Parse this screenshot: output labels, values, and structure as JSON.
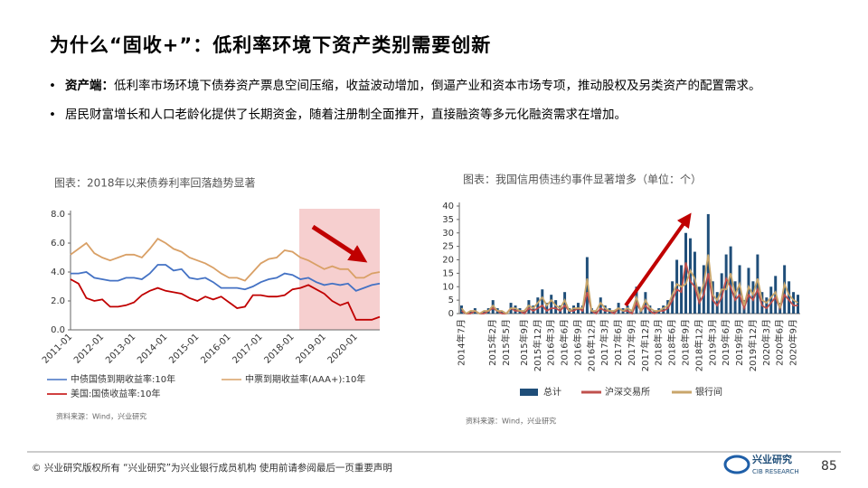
{
  "slide": {
    "title": "为什么“固收+”：低利率环境下资产类别需要创新",
    "bullets": [
      {
        "bold": "资产端：",
        "text": "低利率市场环境下债券资产票息空间压缩，收益波动增加，倒逼产业和资本市场专项，推动股权及另类资产的配置需求。"
      },
      {
        "text": "居民财富增长和人口老龄化提供了长期资金，随着注册制全面推开，直接融资等多元化融资需求在增加。"
      }
    ],
    "footer": "©  兴业研究版权所有    “兴业研究”为兴业银行成员机构    使用前请参阅最后一页重要声明",
    "page": "85",
    "logo": "兴业研究",
    "logo_en": "CIB RESEARCH"
  },
  "chart_data": [
    {
      "type": "line",
      "title": "图表：2018年以来债券利率回落趋势显著",
      "source": "资料来源：Wind，兴业研究",
      "categories": [
        "2011-01",
        null,
        null,
        null,
        "2012-01",
        null,
        null,
        null,
        "2013-01",
        null,
        null,
        null,
        "2014-01",
        null,
        null,
        null,
        "2015-01",
        null,
        null,
        null,
        "2016-01",
        null,
        null,
        null,
        "2017-01",
        null,
        null,
        null,
        "2018-01",
        null,
        null,
        null,
        "2019-01",
        null,
        null,
        null,
        "2020-01",
        null,
        null,
        null
      ],
      "series": [
        {
          "name": "中债国债到期收益率:10年",
          "color": "#4472c4",
          "values": [
            3.9,
            3.9,
            4.0,
            3.6,
            3.5,
            3.4,
            3.4,
            3.6,
            3.6,
            3.5,
            3.9,
            4.5,
            4.5,
            4.1,
            4.2,
            3.6,
            3.5,
            3.6,
            3.3,
            2.9,
            2.9,
            2.9,
            2.8,
            3.0,
            3.3,
            3.5,
            3.6,
            3.9,
            3.8,
            3.5,
            3.6,
            3.3,
            3.1,
            3.2,
            3.1,
            3.2,
            2.7,
            2.9,
            3.1,
            3.2
          ]
        },
        {
          "name": "中票到期收益率(AAA+):10年",
          "color": "#d9a066",
          "values": [
            5.2,
            5.6,
            6.0,
            5.3,
            5.0,
            4.8,
            5.0,
            5.2,
            5.2,
            5.0,
            5.6,
            6.3,
            6.0,
            5.6,
            5.4,
            5.0,
            4.8,
            4.6,
            4.3,
            3.9,
            3.6,
            3.6,
            3.4,
            4.0,
            4.6,
            4.9,
            5.0,
            5.5,
            5.4,
            5.0,
            4.8,
            4.5,
            4.2,
            4.4,
            4.2,
            4.2,
            3.6,
            3.6,
            3.9,
            4.0
          ]
        },
        {
          "name": "美国:国债收益率:10年",
          "color": "#c00000",
          "values": [
            3.5,
            3.2,
            2.2,
            2.0,
            2.1,
            1.6,
            1.6,
            1.7,
            1.9,
            2.4,
            2.7,
            2.9,
            2.7,
            2.6,
            2.5,
            2.2,
            2.0,
            2.3,
            2.1,
            2.3,
            1.9,
            1.5,
            1.6,
            2.4,
            2.4,
            2.3,
            2.3,
            2.4,
            2.8,
            2.9,
            3.1,
            2.8,
            2.5,
            2.0,
            1.7,
            1.9,
            0.7,
            0.7,
            0.7,
            0.9
          ]
        }
      ],
      "ylim": [
        0,
        8
      ],
      "yticks": [
        {
          "value": 0,
          "label": "0.0"
        },
        {
          "value": 2,
          "label": "2.0"
        },
        {
          "value": 4,
          "label": "4.0"
        },
        {
          "value": 6,
          "label": "6.0"
        },
        {
          "value": 8,
          "label": "8.0"
        }
      ],
      "grid": false
    },
    {
      "type": "combo",
      "title": "图表：我国信用债违约事件显著增多（单位：个）",
      "source": "资料来源：Wind，兴业研究",
      "categories": [
        "2014年7月",
        null,
        null,
        null,
        null,
        null,
        null,
        "2015年2月",
        null,
        null,
        "2015年5月",
        null,
        null,
        null,
        "2015年9月",
        null,
        null,
        "2015年12月",
        null,
        null,
        "2016年3月",
        null,
        null,
        "2016年6月",
        null,
        null,
        "2016年9月",
        null,
        null,
        "2016年12月",
        null,
        null,
        "2017年3月",
        null,
        null,
        "2017年6月",
        null,
        null,
        "2017年9月",
        null,
        null,
        "2017年12月",
        null,
        null,
        "2018年3月",
        null,
        null,
        "2018年6月",
        null,
        null,
        "2018年9月",
        null,
        null,
        "2018年12月",
        null,
        null,
        "2019年3月",
        null,
        null,
        "2019年6月",
        null,
        null,
        "2019年9月",
        null,
        null,
        "2019年12月",
        null,
        null,
        "2020年3月",
        null,
        null,
        "2020年6月",
        null,
        null,
        "2020年9月",
        null
      ],
      "series": [
        {
          "name": "总计",
          "type": "bar",
          "color": "#1f4e79",
          "values": [
            3,
            0,
            1,
            2,
            0,
            1,
            2,
            5,
            2,
            1,
            0,
            4,
            3,
            2,
            1,
            5,
            3,
            6,
            9,
            4,
            7,
            5,
            3,
            8,
            2,
            3,
            4,
            3,
            21,
            2,
            1,
            6,
            3,
            2,
            1,
            4,
            2,
            3,
            1,
            10,
            2,
            8,
            3,
            1,
            2,
            3,
            5,
            12,
            20,
            18,
            30,
            28,
            23,
            10,
            18,
            37,
            12,
            8,
            15,
            22,
            25,
            12,
            18,
            5,
            17,
            12,
            22,
            8,
            6,
            10,
            14,
            4,
            18,
            12,
            8,
            7
          ]
        },
        {
          "name": "沪深交易所",
          "type": "line",
          "color": "#c0504d",
          "values": [
            1,
            0,
            0,
            1,
            0,
            0,
            1,
            2,
            1,
            0,
            0,
            2,
            1,
            1,
            0,
            2,
            1,
            2,
            3,
            1,
            2,
            2,
            1,
            3,
            1,
            1,
            2,
            1,
            8,
            1,
            0,
            2,
            1,
            1,
            0,
            2,
            1,
            1,
            0,
            4,
            1,
            3,
            1,
            0,
            1,
            1,
            2,
            5,
            9,
            8,
            19,
            12,
            10,
            4,
            7,
            15,
            5,
            3,
            6,
            13,
            10,
            5,
            7,
            2,
            7,
            5,
            9,
            3,
            2,
            4,
            6,
            2,
            7,
            5,
            3,
            3
          ]
        },
        {
          "name": "银行间",
          "type": "line",
          "color": "#c9a66b",
          "values": [
            2,
            0,
            1,
            1,
            0,
            1,
            1,
            3,
            1,
            1,
            0,
            2,
            2,
            1,
            1,
            3,
            2,
            4,
            6,
            3,
            5,
            3,
            2,
            5,
            1,
            2,
            2,
            2,
            13,
            1,
            1,
            4,
            2,
            1,
            1,
            2,
            1,
            2,
            1,
            6,
            1,
            5,
            2,
            1,
            1,
            2,
            3,
            7,
            11,
            10,
            11,
            16,
            13,
            6,
            11,
            22,
            7,
            5,
            9,
            9,
            15,
            7,
            11,
            3,
            10,
            7,
            13,
            5,
            4,
            6,
            8,
            2,
            11,
            7,
            5,
            4
          ]
        }
      ],
      "ylim": [
        0,
        40
      ],
      "yticks": [
        0,
        5,
        10,
        15,
        20,
        25,
        30,
        35,
        40
      ],
      "grid": false
    }
  ]
}
